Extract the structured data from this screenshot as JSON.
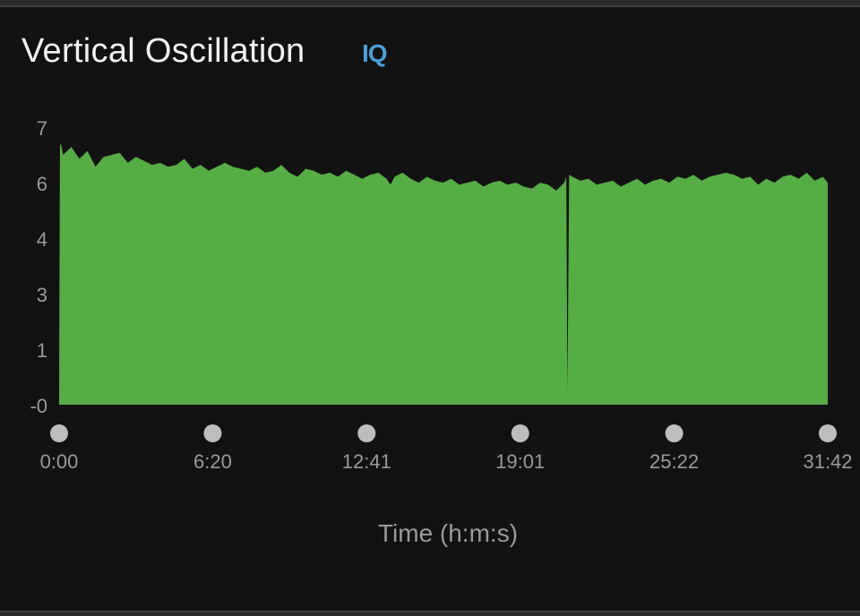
{
  "header": {
    "title": "Vertical Oscillation",
    "badge": "IQ"
  },
  "colors": {
    "background": "#121212",
    "area_fill": "#56ac45",
    "tick_text": "#9a9a9a",
    "axis_dot": "#bdbdbd",
    "badge": "#4a9fd8"
  },
  "chart_data": {
    "type": "area",
    "title": "Vertical Oscillation",
    "xlabel": "Time (h:m:s)",
    "ylabel": "",
    "xlim": [
      0,
      1902
    ],
    "ylim": [
      0,
      7
    ],
    "y_ticks": [
      {
        "value": 0,
        "label": "-0"
      },
      {
        "value": 1.4,
        "label": "1"
      },
      {
        "value": 2.8,
        "label": "3"
      },
      {
        "value": 4.2,
        "label": "4"
      },
      {
        "value": 5.6,
        "label": "6"
      },
      {
        "value": 7,
        "label": "7"
      }
    ],
    "x_ticks": [
      {
        "value": 0,
        "label": "0:00"
      },
      {
        "value": 380,
        "label": "6:20"
      },
      {
        "value": 761,
        "label": "12:41"
      },
      {
        "value": 1141,
        "label": "19:01"
      },
      {
        "value": 1522,
        "label": "25:22"
      },
      {
        "value": 1902,
        "label": "31:42"
      }
    ],
    "grid": false,
    "legend": "none",
    "series": [
      {
        "x": [
          0,
          2,
          4,
          10,
          30,
          50,
          70,
          90,
          110,
          130,
          150,
          170,
          190,
          210,
          230,
          250,
          270,
          290,
          310,
          330,
          350,
          370,
          390,
          410,
          430,
          450,
          470,
          490,
          510,
          530,
          550,
          570,
          590,
          610,
          630,
          650,
          670,
          690,
          710,
          730,
          750,
          770,
          790,
          810,
          820,
          830,
          850,
          870,
          890,
          910,
          930,
          950,
          970,
          990,
          1010,
          1030,
          1050,
          1070,
          1090,
          1110,
          1130,
          1150,
          1170,
          1190,
          1210,
          1230,
          1250,
          1255,
          1258,
          1262,
          1270,
          1290,
          1310,
          1330,
          1350,
          1370,
          1390,
          1410,
          1430,
          1450,
          1470,
          1490,
          1510,
          1530,
          1550,
          1570,
          1590,
          1610,
          1630,
          1650,
          1670,
          1690,
          1710,
          1730,
          1750,
          1770,
          1790,
          1810,
          1830,
          1850,
          1870,
          1890,
          1902
        ],
        "y": [
          0.3,
          6.5,
          6.6,
          6.3,
          6.5,
          6.2,
          6.4,
          6.0,
          6.25,
          6.3,
          6.35,
          6.1,
          6.25,
          6.15,
          6.05,
          6.1,
          6.0,
          6.05,
          6.2,
          5.95,
          6.05,
          5.9,
          6.0,
          6.1,
          6.0,
          5.95,
          5.9,
          6.0,
          5.85,
          5.9,
          6.05,
          5.85,
          5.75,
          5.95,
          5.9,
          5.8,
          5.85,
          5.75,
          5.9,
          5.8,
          5.7,
          5.8,
          5.85,
          5.7,
          5.55,
          5.75,
          5.85,
          5.7,
          5.6,
          5.75,
          5.65,
          5.6,
          5.7,
          5.55,
          5.6,
          5.65,
          5.5,
          5.6,
          5.65,
          5.55,
          5.6,
          5.5,
          5.45,
          5.6,
          5.55,
          5.4,
          5.6,
          5.75,
          0.3,
          5.8,
          5.75,
          5.65,
          5.7,
          5.55,
          5.6,
          5.65,
          5.5,
          5.6,
          5.7,
          5.55,
          5.65,
          5.7,
          5.6,
          5.75,
          5.7,
          5.8,
          5.65,
          5.75,
          5.8,
          5.85,
          5.8,
          5.7,
          5.75,
          5.55,
          5.7,
          5.6,
          5.75,
          5.8,
          5.7,
          5.85,
          5.65,
          5.75,
          5.6
        ]
      }
    ]
  }
}
